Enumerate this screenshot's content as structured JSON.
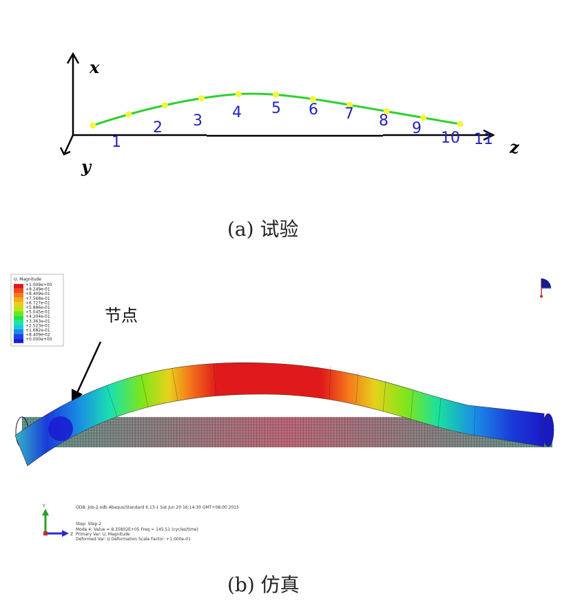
{
  "panel_a": {
    "axis_x_label": "x",
    "axis_y_label": "y",
    "axis_z_label": "z",
    "node_labels": [
      "1",
      "2",
      "3",
      "4",
      "5",
      "6",
      "7",
      "8",
      "9",
      "10",
      "11"
    ],
    "curve_color": "#2bd12b",
    "marker_color": "#f5f53a",
    "caption": "(a)  试验"
  },
  "panel_b": {
    "annotation": "节点",
    "legend": {
      "title": "U, Magnitude",
      "values": [
        "+1.009e+00",
        "+9.249e-01",
        "+8.409e-01",
        "+7.568e-01",
        "+6.727e-01",
        "+5.886e-01",
        "+5.045e-01",
        "+4.204e-01",
        "+3.363e-01",
        "+2.523e-01",
        "+1.682e-01",
        "+8.409e-02",
        "+0.000e+00"
      ],
      "colors": [
        "#e01a1a",
        "#f0461a",
        "#f5781a",
        "#f5aa1a",
        "#e6d21a",
        "#b4e61a",
        "#6ee61a",
        "#1ae646",
        "#1ae6a0",
        "#1ac8e6",
        "#1a8ce6",
        "#1a46e6",
        "#1a1ae6"
      ]
    },
    "info_lines": [
      "ODB: Job-2.odb   Abaqus/Standard 6.13-1   Sat Jun 20 16:14:30 GMT+08:00 2015",
      "Step: Step-2",
      "Mode        4: Value =  8.35802E+05 Freq =   145.51    (cycles/time)",
      "Primary Var: U, Magnitude",
      "Deformed Var: U   Deformation Scale Factor: +1.000e-01"
    ],
    "triad_y": "Y",
    "triad_z": "Z",
    "caption": "(b)  仿真"
  }
}
